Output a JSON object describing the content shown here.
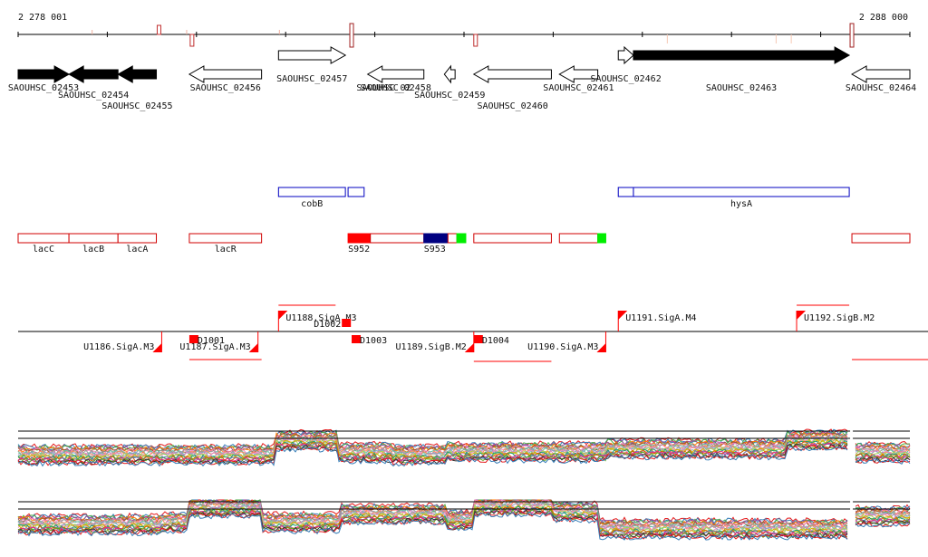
{
  "ruler": {
    "start_label": "2 278 001",
    "end_label": "2 288 000",
    "marks": [
      {
        "kind": "tick",
        "pos": 0.083
      },
      {
        "kind": "tick",
        "pos": 0.189
      },
      {
        "kind": "tick",
        "pos": 0.293
      },
      {
        "kind": "up",
        "pos": 0.158
      },
      {
        "kind": "down",
        "pos": 0.195
      },
      {
        "kind": "tall",
        "pos": 0.374
      },
      {
        "kind": "down",
        "pos": 0.513
      },
      {
        "kind": "faint",
        "pos": 0.728
      },
      {
        "kind": "faint",
        "pos": 0.85
      },
      {
        "kind": "faint",
        "pos": 0.867
      },
      {
        "kind": "tall",
        "pos": 0.935
      }
    ]
  },
  "genes": [
    {
      "name": "SAOUHSC_02453",
      "dir": "fwd",
      "fill": "black",
      "start": 0.0,
      "end": 0.057,
      "row": 1,
      "label_row": 1
    },
    {
      "name": "SAOUHSC_02454",
      "dir": "rev",
      "fill": "black",
      "start": 0.057,
      "end": 0.112,
      "row": 1,
      "label_row": 2
    },
    {
      "name": "SAOUHSC_02455",
      "dir": "rev",
      "fill": "black",
      "start": 0.112,
      "end": 0.155,
      "row": 1,
      "label_row": 3
    },
    {
      "name": "SAOUHSC_02456",
      "dir": "rev",
      "fill": "white",
      "start": 0.192,
      "end": 0.273,
      "row": 1,
      "label_row": 1
    },
    {
      "name": "SAOUHSC_02457",
      "dir": "fwd",
      "fill": "white",
      "start": 0.292,
      "end": 0.367,
      "row": 0,
      "label_row": 0
    },
    {
      "name": "SAOUHSC_02458",
      "dir": "rev",
      "fill": "white",
      "start": 0.392,
      "end": 0.455,
      "row": 1,
      "label_row": 1
    },
    {
      "name": "SAOUHSC_02459",
      "dir": "rev",
      "fill": "white",
      "start": 0.478,
      "end": 0.49,
      "row": 1,
      "label_row": 2
    },
    {
      "name": "SAOUHSC_02460",
      "dir": "rev",
      "fill": "white",
      "start": 0.511,
      "end": 0.598,
      "row": 1,
      "label_row": 3
    },
    {
      "name": "SAOUHSC_02461",
      "dir": "rev",
      "fill": "white",
      "start": 0.607,
      "end": 0.65,
      "row": 1,
      "label_row": 1
    },
    {
      "name": "SAOUHSC_02462",
      "dir": "fwd",
      "fill": "white",
      "start": 0.673,
      "end": 0.69,
      "row": 0,
      "label_row": 0
    },
    {
      "name": "SAOUHSC_02463",
      "dir": "fwd",
      "fill": "black",
      "start": 0.69,
      "end": 0.932,
      "row": 0,
      "label_row": 1
    },
    {
      "name": "SAOUHSC_02464",
      "dir": "rev",
      "fill": "white",
      "start": 0.935,
      "end": 1.0,
      "row": 1,
      "label_row": 1
    }
  ],
  "overlap_label": "SAOUHSC_02",
  "operons_blue": [
    {
      "label": "cobB",
      "start": 0.292,
      "end": 0.367
    },
    {
      "label": "",
      "start": 0.37,
      "end": 0.388
    },
    {
      "label": "",
      "start": 0.673,
      "end": 0.69
    },
    {
      "label": "hysA",
      "start": 0.69,
      "end": 0.932
    }
  ],
  "features_red": [
    {
      "label": "lacC",
      "start": 0.0,
      "end": 0.057
    },
    {
      "label": "lacB",
      "start": 0.057,
      "end": 0.112
    },
    {
      "label": "lacA",
      "start": 0.112,
      "end": 0.155
    },
    {
      "label": "lacR",
      "start": 0.192,
      "end": 0.273
    },
    {
      "label": "S952",
      "start": 0.37,
      "end": 0.395,
      "solid": "#ff0000"
    },
    {
      "label": "",
      "start": 0.395,
      "end": 0.455
    },
    {
      "label": "S953",
      "start": 0.455,
      "end": 0.482,
      "solid": "#000080"
    },
    {
      "label": "",
      "start": 0.482,
      "end": 0.492
    },
    {
      "label": "",
      "start": 0.492,
      "end": 0.502,
      "solid": "#00ee00"
    },
    {
      "label": "",
      "start": 0.511,
      "end": 0.598
    },
    {
      "label": "",
      "start": 0.607,
      "end": 0.65
    },
    {
      "label": "",
      "start": 0.65,
      "end": 0.659,
      "solid": "#00ee00"
    },
    {
      "label": "",
      "start": 0.935,
      "end": 1.0
    }
  ],
  "promoters": [
    {
      "label": "U1186.SigA.M3",
      "pos": 0.161,
      "strand": "rev"
    },
    {
      "label": "U1187.SigA.M3",
      "pos": 0.269,
      "strand": "rev"
    },
    {
      "label": "U1188.SigA.M3",
      "pos": 0.292,
      "strand": "fwd"
    },
    {
      "label": "U1189.SigB.M2",
      "pos": 0.511,
      "strand": "rev"
    },
    {
      "label": "U1190.SigA.M3",
      "pos": 0.659,
      "strand": "rev"
    },
    {
      "label": "U1191.SigA.M4",
      "pos": 0.673,
      "strand": "fwd"
    },
    {
      "label": "U1192.SigB.M2",
      "pos": 0.873,
      "strand": "fwd"
    }
  ],
  "terminators": [
    {
      "label": "D1001",
      "pos": 0.192,
      "strand": "rev"
    },
    {
      "label": "D1002",
      "pos": 0.363,
      "strand": "fwd"
    },
    {
      "label": "D1003",
      "pos": 0.374,
      "strand": "rev"
    },
    {
      "label": "D1004",
      "pos": 0.511,
      "strand": "rev"
    }
  ],
  "colors": {
    "ruler": "#000000",
    "operon": "#0000c0",
    "feature": "#d00000",
    "promoter": "#ff0000"
  }
}
